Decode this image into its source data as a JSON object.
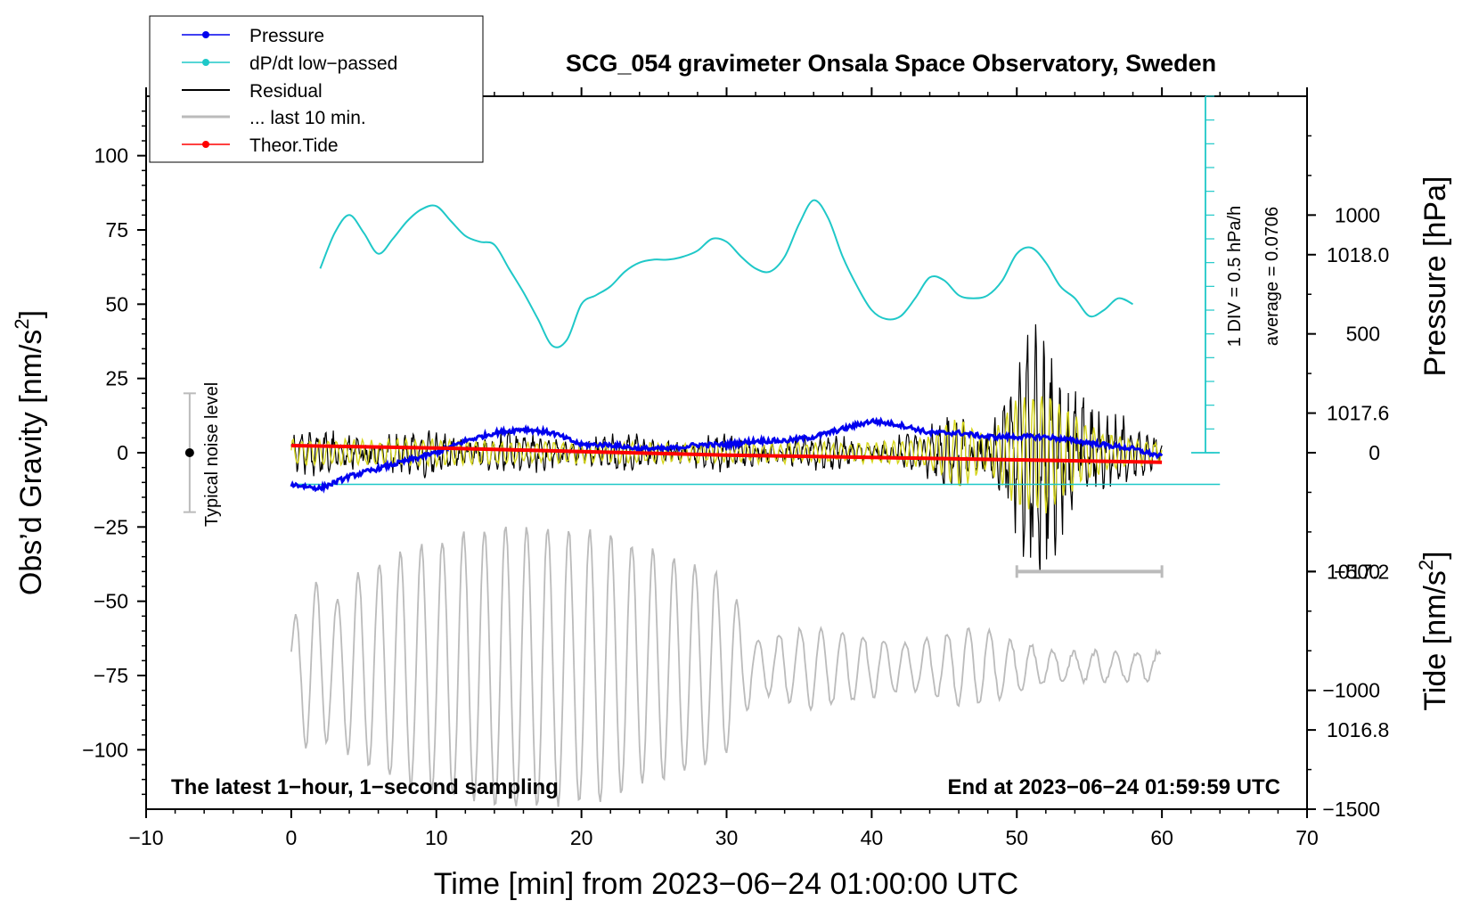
{
  "chart_data": {
    "type": "line",
    "title": "SCG_054 gravimeter Onsala Space Observatory, Sweden",
    "xlabel": "Time [min] from 2023−06−24 01:00:00 UTC",
    "ylabel_left_main": "Obs’d Gravity [nm/s",
    "ylabel_left_sup": "2",
    "ylabel_left_close": "]",
    "ylabel_right_pressure": "Pressure [hPa]",
    "ylabel_right_tide_main": "Tide [nm/s",
    "ylabel_right_tide_sup": "2",
    "ylabel_right_tide_close": "]",
    "xlim": [
      -10,
      70
    ],
    "ylim_gravity": [
      -120,
      120
    ],
    "ylim_pressure": [
      1016.6,
      1018.4
    ],
    "ylim_tide": [
      -1500,
      1500
    ],
    "x_ticks": [
      "−10",
      "0",
      "10",
      "20",
      "30",
      "40",
      "50",
      "60",
      "70"
    ],
    "x_tick_values": [
      -10,
      0,
      10,
      20,
      30,
      40,
      50,
      60,
      70
    ],
    "gravity_ticks": [
      "100",
      "75",
      "50",
      "25",
      "0",
      "−25",
      "−50",
      "−75",
      "−100"
    ],
    "gravity_tick_values": [
      100,
      75,
      50,
      25,
      0,
      -25,
      -50,
      -75,
      -100
    ],
    "pressure_ticks": [
      "1018.0",
      "1017.6",
      "1017.2",
      "1016.8"
    ],
    "pressure_tick_values": [
      1018.0,
      1017.6,
      1017.2,
      1016.8
    ],
    "tide_ticks": [
      "1000",
      "500",
      "0",
      "−500",
      "−1000",
      "−1500"
    ],
    "tide_tick_values": [
      1000,
      500,
      0,
      -500,
      -1000,
      -1500
    ],
    "legend": [
      {
        "label": "Pressure",
        "color": "#0000ee",
        "marker": true
      },
      {
        "label": "dP/dt low−passed",
        "color": "#1fc8c8",
        "marker": true
      },
      {
        "label": "Residual",
        "color": "#000000",
        "marker": false
      },
      {
        "label": "... last 10 min.",
        "color": "#bbbbbb",
        "marker": false
      },
      {
        "label": "Theor.Tide",
        "color": "#ff0000",
        "marker": true
      }
    ],
    "series": [
      {
        "name": "Pressure",
        "axis": "pressure",
        "color": "#0000ee",
        "x": [
          0,
          2,
          4,
          6,
          8,
          10,
          12,
          14,
          16,
          18,
          20,
          22,
          24,
          26,
          28,
          30,
          32,
          34,
          36,
          38,
          40,
          42,
          44,
          46,
          48,
          50,
          52,
          54,
          56,
          58,
          60
        ],
        "values": [
          1017.42,
          1017.41,
          1017.44,
          1017.46,
          1017.48,
          1017.5,
          1017.53,
          1017.55,
          1017.56,
          1017.55,
          1017.52,
          1017.52,
          1017.51,
          1017.51,
          1017.52,
          1017.52,
          1017.53,
          1017.53,
          1017.54,
          1017.56,
          1017.58,
          1017.57,
          1017.55,
          1017.55,
          1017.54,
          1017.54,
          1017.54,
          1017.53,
          1017.52,
          1017.51,
          1017.49
        ]
      },
      {
        "name": "dP/dt low−passed",
        "axis": "gravity",
        "color": "#1fc8c8",
        "x": [
          2,
          3,
          4,
          5,
          6,
          7,
          8,
          9,
          10,
          11,
          12,
          13,
          14,
          15,
          16,
          17,
          18,
          19,
          20,
          21,
          22,
          23,
          24,
          25,
          26,
          27,
          28,
          29,
          30,
          31,
          32,
          33,
          34,
          35,
          36,
          37,
          38,
          39,
          40,
          41,
          42,
          43,
          44,
          45,
          46,
          47,
          48,
          49,
          50,
          51,
          52,
          53,
          54,
          55,
          56,
          57,
          58
        ],
        "values": [
          62,
          74,
          80,
          74,
          67,
          72,
          78,
          82,
          83,
          78,
          73,
          71,
          70,
          62,
          54,
          45,
          36,
          38,
          50,
          53,
          56,
          61,
          64,
          65,
          65,
          66,
          68,
          72,
          71,
          66,
          62,
          61,
          66,
          77,
          85,
          79,
          66,
          56,
          48,
          45,
          46,
          52,
          59,
          58,
          53,
          52,
          53,
          58,
          67,
          69,
          64,
          56,
          52,
          46,
          48,
          52,
          50
        ]
      },
      {
        "name": "Residual",
        "axis": "gravity",
        "color": "#000000",
        "x": [
          0,
          10,
          20,
          30,
          40,
          44,
          46,
          48,
          50,
          51,
          52,
          52.5,
          53,
          54,
          55,
          56,
          58,
          60
        ],
        "values": [
          0,
          0,
          0,
          0,
          0,
          0,
          0,
          0,
          0,
          0,
          0,
          0,
          0,
          0,
          0,
          0,
          0,
          0
        ],
        "amplitude": [
          8,
          8,
          7,
          6,
          6,
          9,
          18,
          12,
          30,
          40,
          47,
          48,
          45,
          35,
          25,
          15,
          10,
          8
        ]
      },
      {
        "name": "... last 10 min.",
        "axis": "gravity",
        "color": "#bbbbbb",
        "x": [
          0,
          1,
          2,
          3,
          4,
          6,
          8,
          10,
          12,
          14,
          16,
          18,
          20,
          22,
          24,
          26,
          28,
          30,
          32,
          34,
          36,
          38,
          40,
          42,
          44,
          46,
          48,
          50,
          52,
          54,
          56,
          58,
          60
        ],
        "values": [
          -72,
          -72,
          -72,
          -72,
          -72,
          -72,
          -72,
          -72,
          -72,
          -72,
          -72,
          -72,
          -72,
          -72,
          -72,
          -72,
          -72,
          -72,
          -72,
          -72,
          -72,
          -72,
          -72,
          -72,
          -72,
          -72,
          -72,
          -72,
          -72,
          -72,
          -72,
          -72,
          -72
        ],
        "amplitude": [
          12,
          28,
          28,
          22,
          30,
          35,
          40,
          42,
          45,
          47,
          48,
          47,
          46,
          45,
          40,
          38,
          34,
          30,
          8,
          12,
          14,
          12,
          10,
          8,
          9,
          13,
          12,
          8,
          6,
          5,
          5,
          5,
          5
        ]
      },
      {
        "name": "Theor.Tide",
        "axis": "tide",
        "color": "#ff0000",
        "x": [
          0,
          10,
          20,
          30,
          40,
          50,
          60
        ],
        "values": [
          30,
          20,
          5,
          -10,
          -20,
          -30,
          -40
        ]
      },
      {
        "name": "Residual low-passed",
        "axis": "gravity",
        "color": "#d6d61c",
        "x": [
          0,
          10,
          20,
          30,
          40,
          44,
          46,
          48,
          50,
          52,
          54,
          56,
          58,
          60
        ],
        "values": [
          0,
          0,
          0,
          0,
          0,
          0,
          0,
          0,
          0,
          0,
          0,
          0,
          0,
          0
        ],
        "amplitude": [
          4,
          4,
          3,
          3,
          3,
          5,
          12,
          5,
          18,
          20,
          12,
          6,
          4,
          3
        ]
      }
    ],
    "pressure_average": 1017.42,
    "scale_bar_label": "1 DIV = 0.5 hPa/h",
    "average_label": "average = 0.0706",
    "noise_label": "Typical noise level",
    "noise_range": [
      -20,
      20
    ],
    "bottom_left_annotation": "The latest 1−hour, 1−second sampling",
    "bottom_right_annotation": "End at 2023−06−24 01:59:59 UTC",
    "window_bar_x": [
      50,
      60
    ]
  }
}
